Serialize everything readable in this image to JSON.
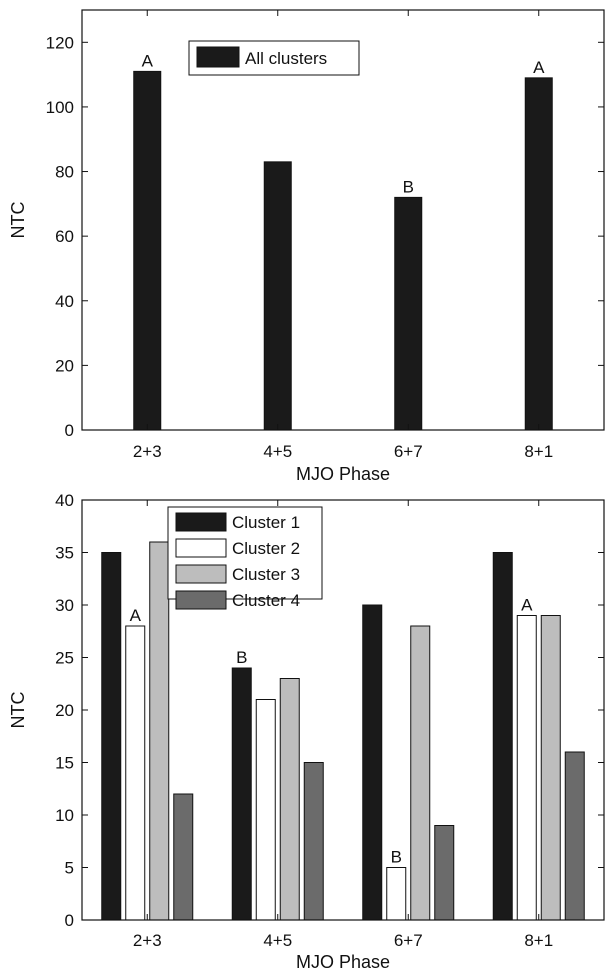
{
  "chart_data": [
    {
      "type": "bar",
      "categories": [
        "2+3",
        "4+5",
        "6+7",
        "8+1"
      ],
      "series": [
        {
          "name": "All clusters",
          "values": [
            111,
            83,
            72,
            109
          ],
          "color": "#1a1a1a"
        }
      ],
      "significance": [
        [
          "A"
        ],
        [
          ""
        ],
        [
          "B"
        ],
        [
          "A"
        ]
      ],
      "xlabel": "MJO Phase",
      "ylabel": "NTC",
      "ylim": [
        0,
        130
      ],
      "yticks": [
        0,
        20,
        40,
        60,
        80,
        100,
        120
      ],
      "legend_position": "top-left",
      "grid": false
    },
    {
      "type": "bar",
      "categories": [
        "2+3",
        "4+5",
        "6+7",
        "8+1"
      ],
      "series": [
        {
          "name": "Cluster 1",
          "values": [
            35,
            24,
            30,
            35
          ],
          "color": "#1a1a1a"
        },
        {
          "name": "Cluster 2",
          "values": [
            28,
            21,
            5,
            29
          ],
          "color": "#ffffff"
        },
        {
          "name": "Cluster 3",
          "values": [
            36,
            23,
            28,
            29
          ],
          "color": "#bdbdbd"
        },
        {
          "name": "Cluster 4",
          "values": [
            12,
            15,
            9,
            16
          ],
          "color": "#6b6b6b"
        }
      ],
      "significance": [
        [
          "",
          "A",
          "",
          ""
        ],
        [
          "B",
          "",
          "",
          ""
        ],
        [
          "",
          "B",
          "",
          ""
        ],
        [
          "",
          "A",
          "",
          ""
        ]
      ],
      "xlabel": "MJO Phase",
      "ylabel": "NTC",
      "ylim": [
        0,
        40
      ],
      "yticks": [
        0,
        5,
        10,
        15,
        20,
        25,
        30,
        35,
        40
      ],
      "legend_position": "top-left",
      "grid": false
    }
  ]
}
